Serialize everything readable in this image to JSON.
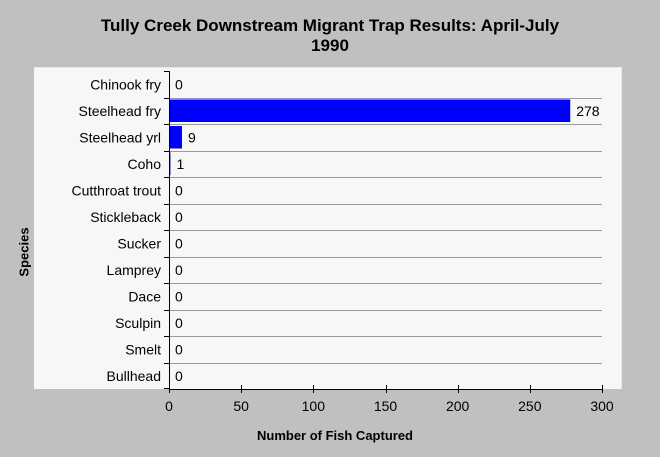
{
  "chart_data": {
    "type": "bar",
    "orientation": "horizontal",
    "title_line1": "Tully Creek Downstream Migrant Trap Results: April-July",
    "title_line2": "1990",
    "xlabel": "Number of Fish Captured",
    "ylabel": "Species",
    "xlim": [
      0,
      300
    ],
    "xticks": [
      0,
      50,
      100,
      150,
      200,
      250,
      300
    ],
    "grid": true,
    "bar_color": "#0000ff",
    "categories": [
      "Chinook fry",
      "Steelhead fry",
      "Steelhead yrl",
      "Coho",
      "Cutthroat trout",
      "Stickleback",
      "Sucker",
      "Lamprey",
      "Dace",
      "Sculpin",
      "Smelt",
      "Bullhead"
    ],
    "values": [
      0,
      278,
      9,
      1,
      0,
      0,
      0,
      0,
      0,
      0,
      0,
      0
    ]
  }
}
